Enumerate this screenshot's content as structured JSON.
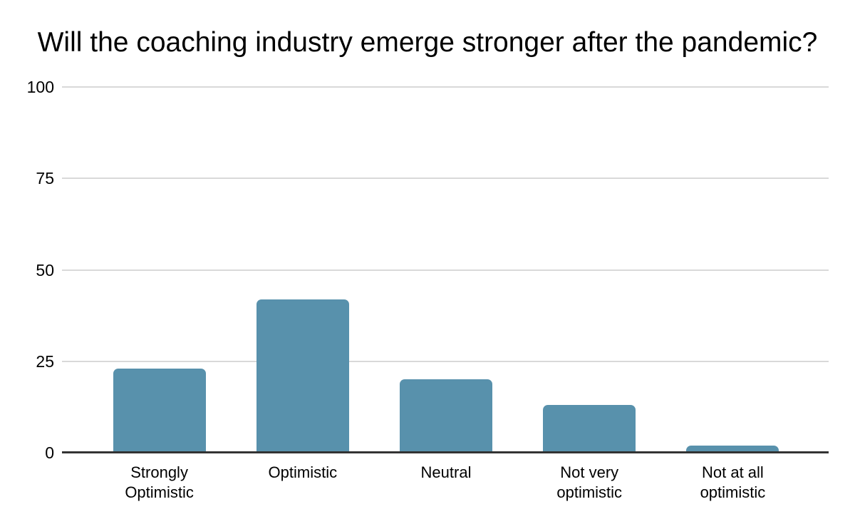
{
  "chart_data": {
    "type": "bar",
    "title": "Will the coaching industry emerge stronger after the pandemic?",
    "categories": [
      "Strongly Optimistic",
      "Optimistic",
      "Neutral",
      "Not very optimistic",
      "Not at all optimistic"
    ],
    "values": [
      23,
      42,
      20,
      13,
      2
    ],
    "xlabel": "",
    "ylabel": "",
    "ylim": [
      0,
      100
    ],
    "yticks": [
      0,
      25,
      50,
      75,
      100
    ],
    "grid": true,
    "legend": false,
    "colors": {
      "bar": "#5891ac",
      "gridline": "#d9d9d9",
      "axis_line": "#333333",
      "text": "#000000",
      "background": "#ffffff"
    }
  }
}
